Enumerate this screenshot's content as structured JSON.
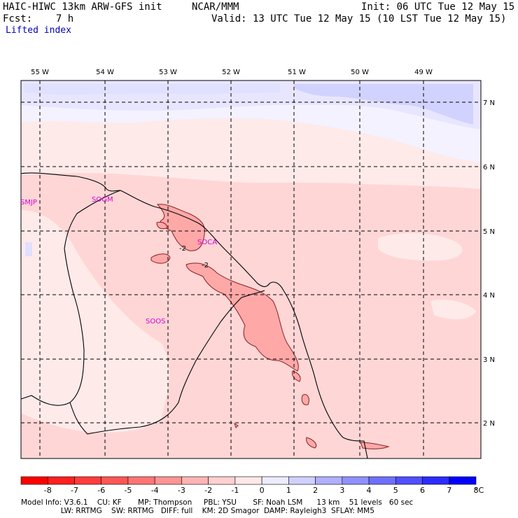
{
  "header": {
    "model": "HAIC-HIWC 13km ARW-GFS init",
    "org": "NCAR/MMM",
    "init": "Init: 06 UTC Tue 12 May 15",
    "fcst": "Fcst:    7 h",
    "valid": "Valid: 13 UTC Tue 12 May 15 (10 LST Tue 12 May 15)",
    "field": "Lifted index"
  },
  "axes": {
    "lon_labels": [
      "55 W",
      "54 W",
      "53 W",
      "52 W",
      "51 W",
      "50 W",
      "49 W"
    ],
    "lat_labels": [
      "7 N",
      "6 N",
      "5 N",
      "4 N",
      "3 N",
      "2 N"
    ]
  },
  "contour_labels": [
    "-2",
    "-2"
  ],
  "stations": [
    "SMJP",
    "SOGM",
    "SOCA",
    "SOOS"
  ],
  "colorbar": {
    "labels": [
      "-8",
      "-7",
      "-6",
      "-5",
      "-4",
      "-3",
      "-2",
      "-1",
      "0",
      "1",
      "2",
      "3",
      "4",
      "5",
      "6",
      "7",
      "8"
    ],
    "unit": "°C",
    "colors": [
      "#ff0000",
      "#ff2020",
      "#ff3c3c",
      "#ff5656",
      "#ff7474",
      "#ff9494",
      "#ffb4b4",
      "#ffd0d0",
      "#ffe8e8",
      "#ececff",
      "#d0d0ff",
      "#b0b0ff",
      "#9090ff",
      "#7070ff",
      "#5050ff",
      "#2c2cff",
      "#0000ff"
    ]
  },
  "footer": {
    "line1": "Model Info: V3.6.1    CU: KF       MP: Thompson     PBL: YSU       SF: Noah LSM      13 km    51 levels   60 sec",
    "line2": "                 LW: RRTMG    SW: RRTMG   DIFF: full    KM: 2D Smagor  DAMP: Rayleigh3  SFLAY: MM5"
  }
}
